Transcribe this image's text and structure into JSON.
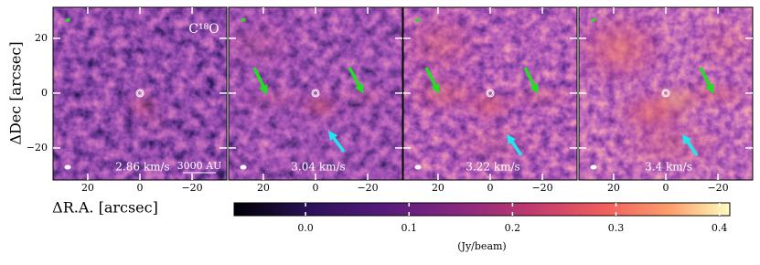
{
  "chart_data": {
    "type": "channel_maps",
    "molecule": "C¹⁸O",
    "scale_bar": "3000 AU",
    "xlabel": "ΔR.A. [arcsec]",
    "ylabel": "ΔDec [arcsec]",
    "panels": [
      {
        "label": "2.86 km/s"
      },
      {
        "label": "3.04 km/s"
      },
      {
        "label": "3.22 km/s"
      },
      {
        "label": "3.4 km/s"
      }
    ],
    "xlim": [
      33.3,
      -33.3
    ],
    "ylim": [
      -31.7,
      31.3
    ],
    "xticks": [
      20,
      0,
      {
        "value": -20,
        "label": "−20"
      }
    ],
    "yticks": [
      20,
      0,
      {
        "value": -20,
        "label": "−20"
      }
    ],
    "colorbar": {
      "label": "(Jy/beam)",
      "lim": [
        -0.069,
        0.41
      ],
      "ticks": [
        {
          "value": 0,
          "label": "0.0"
        },
        0.1,
        0.2,
        0.3,
        0.4
      ]
    }
  }
}
